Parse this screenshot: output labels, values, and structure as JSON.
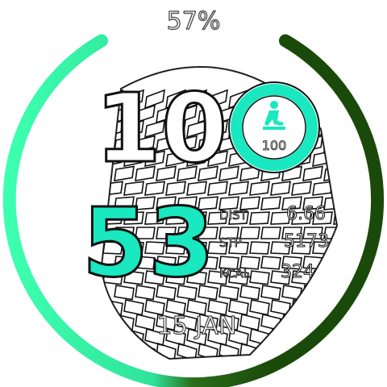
{
  "battery": {
    "label": "57%",
    "level": 0.57,
    "bright_color": "#3dffb0",
    "dark_color": "#1a4a0a"
  },
  "time": {
    "hours": "10",
    "minutes": "53",
    "hours_color": "#ffffff",
    "minutes_color": "#19e8c0"
  },
  "steps_goal": {
    "icon": "walking-person-icon",
    "value": "100",
    "ring_color": "#19e8c0"
  },
  "stats": [
    {
      "label": "DIST",
      "value": "6.66"
    },
    {
      "label": "STP",
      "value": "5173"
    },
    {
      "label": "KCAL",
      "value": "324"
    }
  ],
  "date": "15 JAN",
  "background": "brick-tower-graphic"
}
